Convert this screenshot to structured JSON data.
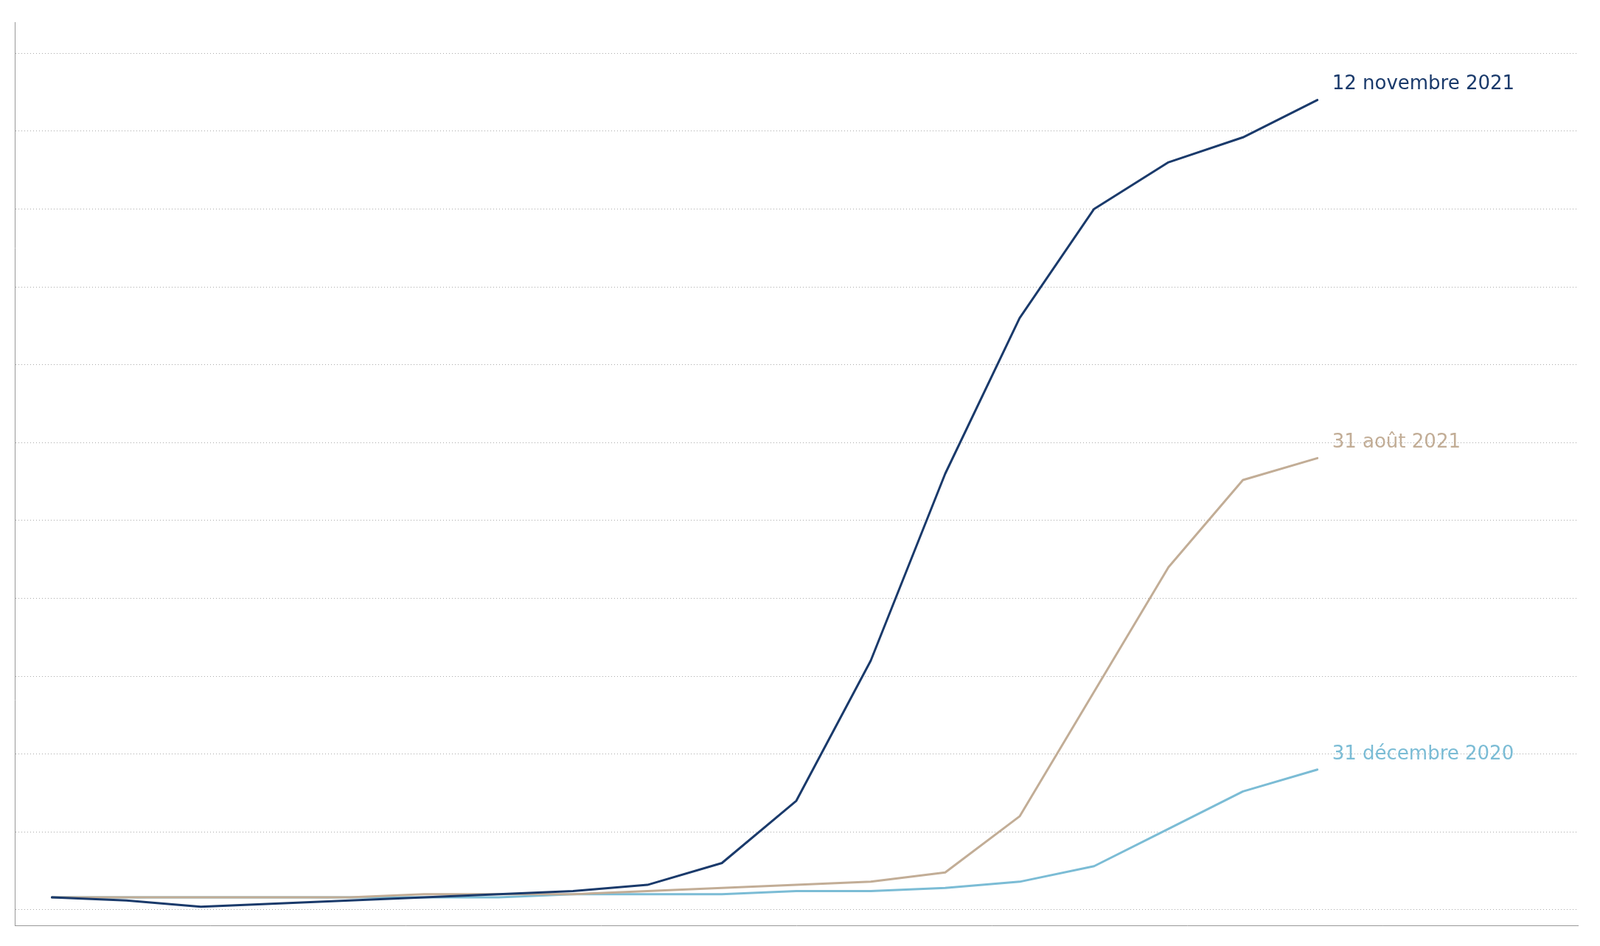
{
  "chart_data": {
    "type": "line",
    "x": [
      0,
      1,
      2,
      3,
      4,
      5,
      6,
      7,
      8,
      9,
      10,
      11,
      12,
      13,
      14,
      15,
      16,
      17
    ],
    "series": [
      {
        "name": "12 novembre 2021",
        "color": "#1a3a6b",
        "values": [
          0.04,
          0.03,
          0.01,
          0.02,
          0.03,
          0.04,
          0.05,
          0.06,
          0.08,
          0.15,
          0.35,
          0.8,
          1.4,
          1.9,
          2.25,
          2.4,
          2.48,
          2.6
        ]
      },
      {
        "name": "31 août 2021",
        "color": "#c2ad96",
        "values": [
          0.04,
          0.04,
          0.04,
          0.04,
          0.04,
          0.05,
          0.05,
          0.05,
          0.06,
          0.07,
          0.08,
          0.09,
          0.12,
          0.3,
          0.7,
          1.1,
          1.38,
          1.45
        ]
      },
      {
        "name": "31 décembre 2020",
        "color": "#7bbcd5",
        "values": [
          0.04,
          0.04,
          0.04,
          0.04,
          0.04,
          0.04,
          0.04,
          0.05,
          0.05,
          0.05,
          0.06,
          0.06,
          0.07,
          0.09,
          0.14,
          0.26,
          0.38,
          0.45
        ]
      }
    ],
    "xlim": [
      -0.5,
      20.5
    ],
    "ylim": [
      -0.05,
      2.85
    ],
    "yticks": [
      0.0,
      0.25,
      0.5,
      0.75,
      1.0,
      1.25,
      1.5,
      1.75,
      2.0,
      2.25,
      2.5,
      2.75
    ],
    "grid": true,
    "tick_labels": false
  }
}
